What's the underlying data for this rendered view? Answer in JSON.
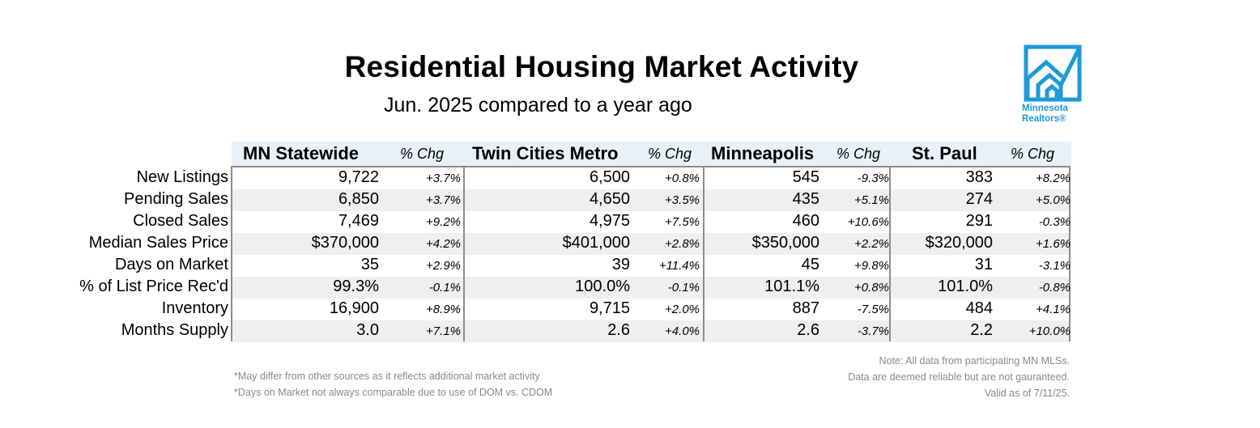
{
  "header": {
    "title": "Residential Housing Market Activity",
    "subtitle": "Jun. 2025 compared to a year ago"
  },
  "logo": {
    "line1": "Minnesota",
    "line2": "Realtors®",
    "color": "#1e9ad6"
  },
  "table": {
    "regions": [
      "MN Statewide",
      "Twin Cities Metro",
      "Minneapolis",
      "St. Paul"
    ],
    "chg_label": "% Chg",
    "rows": [
      {
        "metric": "New Listings",
        "values": [
          "9,722",
          "6,500",
          "545",
          "383"
        ],
        "changes": [
          "+3.7%",
          "+0.8%",
          "-9.3%",
          "+8.2%"
        ]
      },
      {
        "metric": "Pending Sales",
        "values": [
          "6,850",
          "4,650",
          "435",
          "274"
        ],
        "changes": [
          "+3.7%",
          "+3.5%",
          "+5.1%",
          "+5.0%"
        ]
      },
      {
        "metric": "Closed Sales",
        "values": [
          "7,469",
          "4,975",
          "460",
          "291"
        ],
        "changes": [
          "+9.2%",
          "+7.5%",
          "+10.6%",
          "-0.3%"
        ]
      },
      {
        "metric": "Median Sales Price",
        "values": [
          "$370,000",
          "$401,000",
          "$350,000",
          "$320,000"
        ],
        "changes": [
          "+4.2%",
          "+2.8%",
          "+2.2%",
          "+1.6%"
        ]
      },
      {
        "metric": "Days on Market",
        "values": [
          "35",
          "39",
          "45",
          "31"
        ],
        "changes": [
          "+2.9%",
          "+11.4%",
          "+9.8%",
          "-3.1%"
        ]
      },
      {
        "metric": "% of List Price Rec'd",
        "values": [
          "99.3%",
          "100.0%",
          "101.1%",
          "101.0%"
        ],
        "changes": [
          "-0.1%",
          "-0.1%",
          "+0.8%",
          "-0.8%"
        ]
      },
      {
        "metric": "Inventory",
        "values": [
          "16,900",
          "9,715",
          "887",
          "484"
        ],
        "changes": [
          "+8.9%",
          "+2.0%",
          "-7.5%",
          "+4.1%"
        ]
      },
      {
        "metric": "Months Supply",
        "values": [
          "3.0",
          "2.6",
          "2.6",
          "2.2"
        ],
        "changes": [
          "+7.1%",
          "+4.0%",
          "-3.7%",
          "+10.0%"
        ]
      }
    ]
  },
  "footnotes": {
    "left": [
      "*May differ from other sources as it reflects additional market activity",
      "*Days on Market not always comparable due to use of DOM vs. CDOM"
    ],
    "right": [
      "Note:  All data from participating MN MLSs.",
      "Data are deemed reliable but are not gauranteed.",
      "Valid as of 7/11/25."
    ]
  }
}
